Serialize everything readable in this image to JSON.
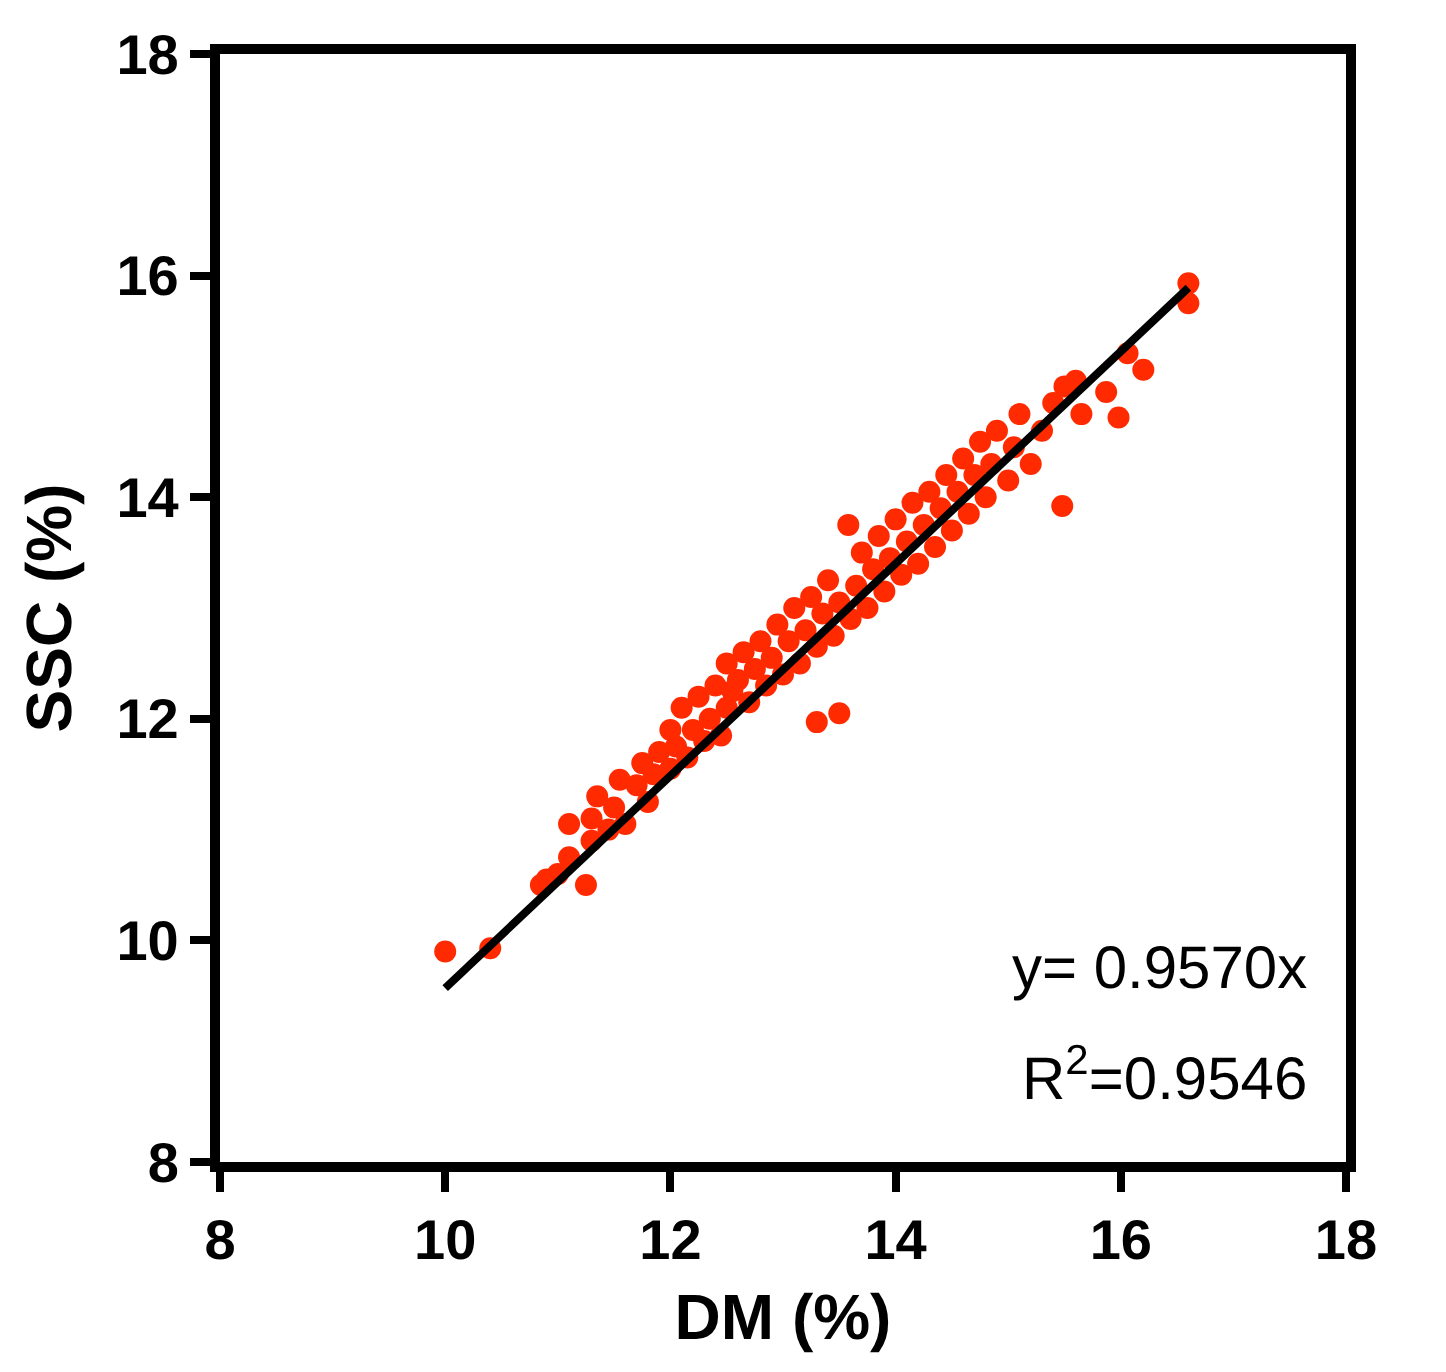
{
  "chart_data": {
    "type": "scatter",
    "xlabel": "DM (%)",
    "ylabel": "SSC (%)",
    "xlim": [
      8,
      18
    ],
    "xticks": [
      8,
      10,
      12,
      14,
      16,
      18
    ],
    "ylim": [
      8,
      18
    ],
    "yticks": [
      8,
      10,
      12,
      14,
      16,
      18
    ],
    "grid": false,
    "annotations": [
      "y= 0.9570x",
      "R$^{2}$=0.9546"
    ],
    "series": [
      {
        "color": "#ff2a00",
        "marker": "circle",
        "x": [
          10.0,
          10.4,
          10.85,
          10.9,
          11.0,
          11.1,
          11.25,
          11.3,
          11.1,
          11.3,
          11.35,
          11.45,
          11.5,
          11.55,
          11.6,
          11.7,
          11.75,
          11.8,
          11.85,
          11.9,
          12.0,
          12.0,
          12.05,
          12.1,
          12.15,
          12.2,
          12.25,
          12.3,
          12.35,
          12.4,
          12.45,
          12.5,
          12.5,
          12.55,
          12.6,
          12.65,
          12.7,
          12.75,
          12.8,
          12.85,
          12.9,
          12.95,
          13.0,
          13.05,
          13.1,
          13.15,
          13.2,
          13.25,
          13.3,
          13.3,
          13.35,
          13.4,
          13.45,
          13.5,
          13.5,
          13.58,
          13.6,
          13.65,
          13.7,
          13.75,
          13.8,
          13.85,
          13.9,
          13.95,
          14.0,
          14.05,
          14.1,
          14.15,
          14.2,
          14.25,
          14.3,
          14.35,
          14.4,
          14.45,
          14.5,
          14.55,
          14.6,
          14.65,
          14.7,
          14.75,
          14.8,
          14.85,
          14.9,
          15.0,
          15.05,
          15.1,
          15.2,
          15.3,
          15.4,
          15.48,
          15.5,
          15.6,
          15.65,
          15.87,
          15.98,
          16.06,
          16.2,
          16.6,
          16.6
        ],
        "values": [
          9.9,
          9.93,
          10.5,
          10.55,
          10.6,
          10.75,
          10.5,
          10.9,
          11.05,
          11.1,
          11.3,
          11.0,
          11.2,
          11.45,
          11.05,
          11.4,
          11.6,
          11.25,
          11.5,
          11.7,
          11.55,
          11.9,
          11.75,
          12.1,
          11.65,
          11.9,
          12.2,
          11.8,
          12.0,
          12.3,
          11.85,
          12.1,
          12.5,
          12.25,
          12.35,
          12.6,
          12.15,
          12.45,
          12.7,
          12.3,
          12.55,
          12.85,
          12.4,
          12.7,
          13.0,
          12.5,
          12.8,
          13.1,
          11.97,
          12.65,
          12.95,
          13.25,
          12.75,
          12.05,
          13.05,
          13.75,
          12.9,
          13.2,
          13.5,
          13.0,
          13.35,
          13.65,
          13.15,
          13.45,
          13.8,
          13.3,
          13.6,
          13.95,
          13.4,
          13.75,
          14.05,
          13.55,
          13.9,
          14.2,
          13.7,
          14.05,
          14.35,
          13.85,
          14.2,
          14.5,
          14.0,
          14.3,
          14.6,
          14.15,
          14.45,
          14.75,
          14.3,
          14.6,
          14.85,
          13.92,
          15.0,
          15.05,
          14.75,
          14.95,
          14.72,
          15.3,
          15.15,
          15.93,
          15.75
        ]
      },
      {
        "type": "line",
        "color": "#000000",
        "marker": "none",
        "line_style": "solid",
        "x": [
          10,
          16.6
        ],
        "values": [
          9.57,
          15.89
        ]
      }
    ]
  }
}
